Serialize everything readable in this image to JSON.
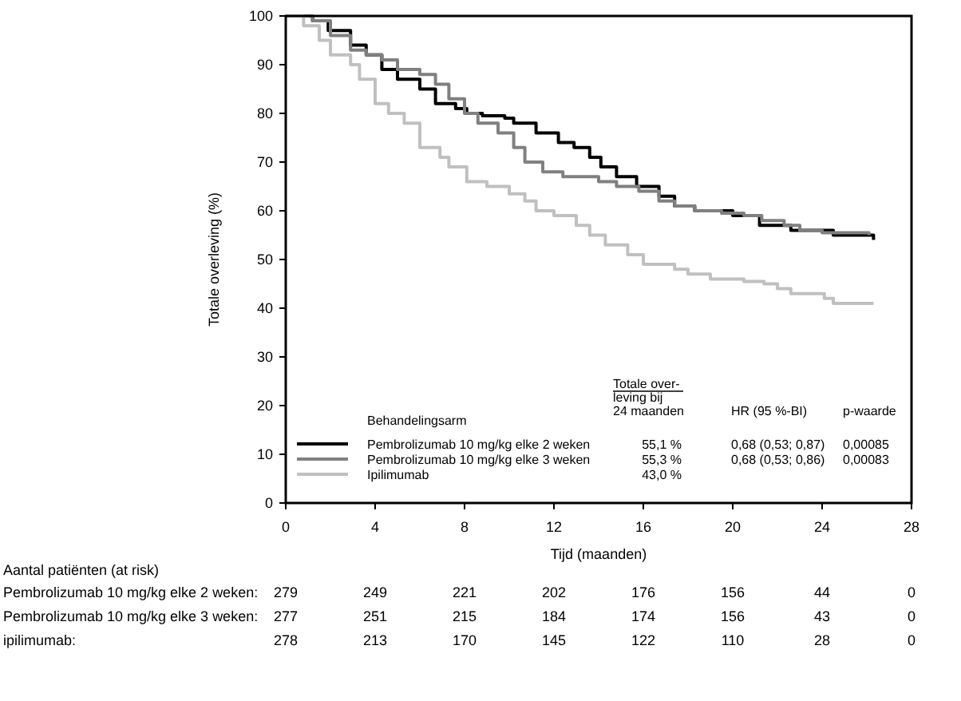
{
  "chart_data": {
    "type": "step",
    "xlabel": "Tijd (maanden)",
    "ylabel": "Totale overleving (%)",
    "xlim": [
      0,
      28
    ],
    "xticks": [
      0,
      4,
      8,
      12,
      16,
      20,
      24,
      28
    ],
    "ylim": [
      0,
      100
    ],
    "yticks": [
      0,
      10,
      20,
      30,
      40,
      50,
      60,
      70,
      80,
      90,
      100
    ],
    "grid": false,
    "legend": "bottom left",
    "legend_title": "Behandelingsarm",
    "series": [
      {
        "name": "Pembrolizumab 10 mg/kg elke 2 weken",
        "color": "#000000",
        "x": [
          0,
          1.2,
          1.9,
          2.9,
          3.6,
          4.3,
          5.0,
          6.0,
          6.7,
          7.6,
          8.1,
          8.8,
          9.8,
          10.2,
          11.2,
          12.2,
          12.9,
          13.6,
          14.1,
          14.8,
          15.7,
          16.7,
          17.4,
          18.3,
          20.0,
          21.2,
          22.6,
          24.5,
          26.3
        ],
        "values": [
          100,
          99,
          97,
          94,
          92,
          89,
          87,
          85,
          82,
          81,
          80,
          79.5,
          79,
          78,
          76,
          74,
          73,
          71,
          69,
          67,
          65,
          63,
          61,
          60,
          59,
          57,
          56,
          55,
          54
        ]
      },
      {
        "name": "Pembrolizumab 10 mg/kg elke 3 weken",
        "color": "#808080",
        "x": [
          0,
          1.2,
          2.0,
          2.9,
          3.6,
          4.3,
          5.0,
          6.0,
          6.7,
          7.3,
          8.0,
          8.6,
          9.5,
          10.2,
          10.7,
          11.5,
          12.4,
          14.0,
          14.8,
          15.8,
          16.7,
          17.4,
          18.3,
          19.5,
          20.5,
          21.3,
          22.3,
          23.0,
          24.0,
          26.1
        ],
        "values": [
          100,
          99,
          96,
          93,
          92,
          91,
          89,
          88,
          86,
          83,
          80,
          78,
          76,
          73,
          70,
          68,
          67,
          66,
          65,
          64,
          62,
          61,
          60,
          59.5,
          59,
          58,
          57,
          56,
          55.5,
          55
        ]
      },
      {
        "name": "Ipilimumab",
        "color": "#c0c0c0",
        "x": [
          0,
          0.8,
          1.5,
          2.0,
          2.9,
          3.3,
          4.0,
          4.6,
          5.3,
          6.0,
          6.9,
          7.3,
          8.1,
          9.0,
          10.0,
          10.7,
          11.2,
          12.0,
          13.0,
          13.6,
          14.3,
          15.3,
          16.0,
          17.4,
          18.0,
          19.0,
          20.5,
          21.4,
          22.0,
          22.6,
          24.1,
          24.5,
          26.3
        ],
        "values": [
          100,
          98,
          95,
          92,
          90,
          87,
          82,
          80,
          78,
          73,
          71,
          69,
          66,
          65,
          63.5,
          62,
          60,
          59,
          57,
          55,
          53,
          51,
          49,
          48,
          47,
          46,
          45.5,
          45,
          44,
          43,
          42,
          41,
          41
        ]
      }
    ],
    "annotations": [
      "Totale over-\nleving bij\n24 maanden",
      "HR (95 %-BI)",
      "p-waarde",
      "55,1 %",
      "0,68 (0,53; 0,87)",
      "0,00085",
      "55,3 %",
      "0,68 (0,53; 0,86)",
      "0,00083",
      "43,0 %",
      "Aantal patiënten (at risk)",
      "Pembrolizumab 10 mg/kg elke 2 weken:",
      "279 249 221 202 176 156 44 0",
      "Pembrolizumab 10 mg/kg elke 3 weken:",
      "277 251 215 184 174 156 43 0",
      "ipilimumab:",
      "278 213 170 145 122 110 28 0"
    ]
  }
}
